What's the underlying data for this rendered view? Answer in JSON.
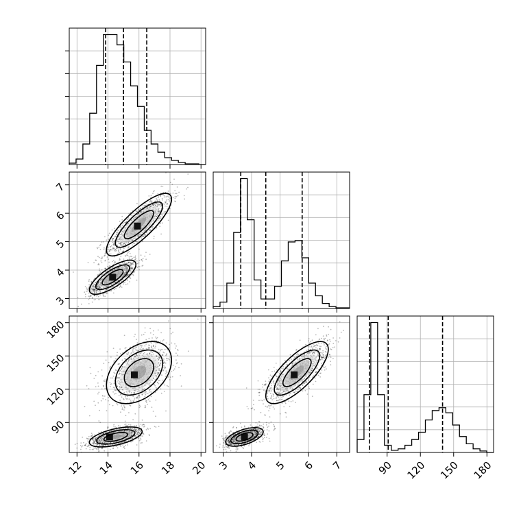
{
  "chart_data": {
    "type": "corner",
    "parameters": [
      "",
      "",
      ""
    ],
    "ranges": [
      [
        11.5,
        20.3
      ],
      [
        2.65,
        7.45
      ],
      [
        63,
        186
      ]
    ],
    "ticks": [
      {
        "values": [
          12,
          14,
          16,
          18,
          20
        ],
        "labels": [
          "12",
          "14",
          "16",
          "18",
          "20"
        ]
      },
      {
        "values": [
          3,
          4,
          5,
          6,
          7
        ],
        "labels": [
          "3",
          "4",
          "5",
          "6",
          "7"
        ]
      },
      {
        "values": [
          90,
          120,
          150,
          180
        ],
        "labels": [
          "90",
          "120",
          "150",
          "180"
        ]
      }
    ],
    "quantiles": [
      [
        13.85,
        15.0,
        16.5
      ],
      [
        3.62,
        4.5,
        5.78
      ],
      [
        74,
        91,
        140
      ]
    ],
    "histograms": [
      {
        "bins": [
          11.5,
          11.94,
          12.38,
          12.82,
          13.26,
          13.7,
          14.14,
          14.58,
          15.02,
          15.46,
          15.9,
          16.34,
          16.78,
          17.22,
          17.66,
          18.1,
          18.54,
          18.98,
          19.42,
          19.86,
          20.3
        ],
        "counts": [
          2,
          8,
          30,
          75,
          145,
          190,
          190,
          175,
          150,
          115,
          85,
          50,
          30,
          18,
          10,
          6,
          3,
          1,
          1,
          0
        ]
      },
      {
        "bins": [
          2.65,
          2.89,
          3.13,
          3.37,
          3.61,
          3.85,
          4.09,
          4.33,
          4.57,
          4.81,
          5.05,
          5.29,
          5.53,
          5.77,
          6.01,
          6.25,
          6.49,
          6.73,
          6.97,
          7.21,
          7.45
        ],
        "counts": [
          3,
          10,
          40,
          120,
          205,
          140,
          45,
          15,
          15,
          35,
          75,
          105,
          107,
          80,
          40,
          20,
          8,
          3,
          1,
          1
        ]
      },
      {
        "bins": [
          63,
          69.15,
          75.3,
          81.45,
          87.6,
          93.75,
          99.9,
          106.05,
          112.2,
          118.35,
          124.5,
          130.65,
          136.8,
          142.95,
          149.1,
          155.25,
          161.4,
          167.55,
          173.7,
          179.85,
          186
        ],
        "counts": [
          18,
          80,
          180,
          80,
          10,
          3,
          5,
          10,
          18,
          28,
          45,
          58,
          62,
          55,
          38,
          22,
          12,
          5,
          2,
          0
        ]
      }
    ],
    "pairs": [
      {
        "x": 0,
        "y": 1,
        "components": [
          {
            "mean": [
              16.0,
              5.6
            ],
            "sd": [
              1.05,
              0.55
            ],
            "rho": 0.82,
            "n": 1150,
            "peak": [
              15.9,
              5.55
            ]
          },
          {
            "mean": [
              14.3,
              3.75
            ],
            "sd": [
              0.75,
              0.3
            ],
            "rho": 0.75,
            "n": 1150,
            "peak": [
              14.3,
              3.75
            ]
          }
        ]
      },
      {
        "x": 0,
        "y": 2,
        "components": [
          {
            "mean": [
              16.0,
              135
            ],
            "sd": [
              1.05,
              14
            ],
            "rho": 0.4,
            "n": 1150,
            "peak": [
              15.7,
              133
            ]
          },
          {
            "mean": [
              14.5,
              77
            ],
            "sd": [
              0.85,
              4.5
            ],
            "rho": 0.55,
            "n": 1150,
            "peak": [
              14.1,
              77
            ]
          }
        ]
      },
      {
        "x": 1,
        "y": 2,
        "components": [
          {
            "mean": [
              5.6,
              135
            ],
            "sd": [
              0.55,
              14
            ],
            "rho": 0.75,
            "n": 1150,
            "peak": [
              5.5,
              133
            ]
          },
          {
            "mean": [
              3.75,
              77
            ],
            "sd": [
              0.33,
              4.2
            ],
            "rho": 0.55,
            "n": 1150,
            "peak": [
              3.75,
              77
            ]
          }
        ]
      }
    ],
    "grid": true
  }
}
